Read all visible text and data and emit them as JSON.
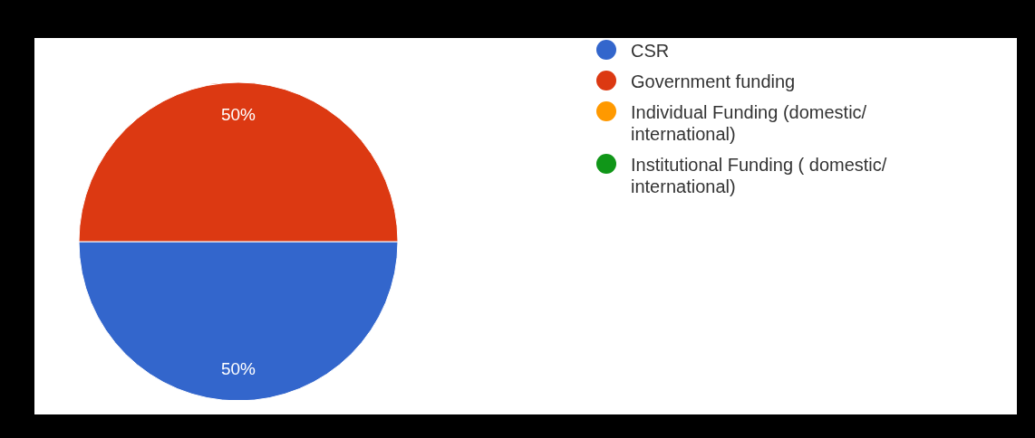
{
  "chart_data": {
    "type": "pie",
    "categories": [
      "CSR",
      "Government funding",
      "Individual Funding (domestic/ international)",
      "Institutional Funding ( domestic/ international)"
    ],
    "values": [
      50,
      50,
      0,
      0
    ],
    "colors": [
      "#3366cc",
      "#dc3912",
      "#ff9900",
      "#109618"
    ],
    "value_labels": [
      "50%",
      "50%",
      null,
      null
    ],
    "legend": "top right"
  }
}
